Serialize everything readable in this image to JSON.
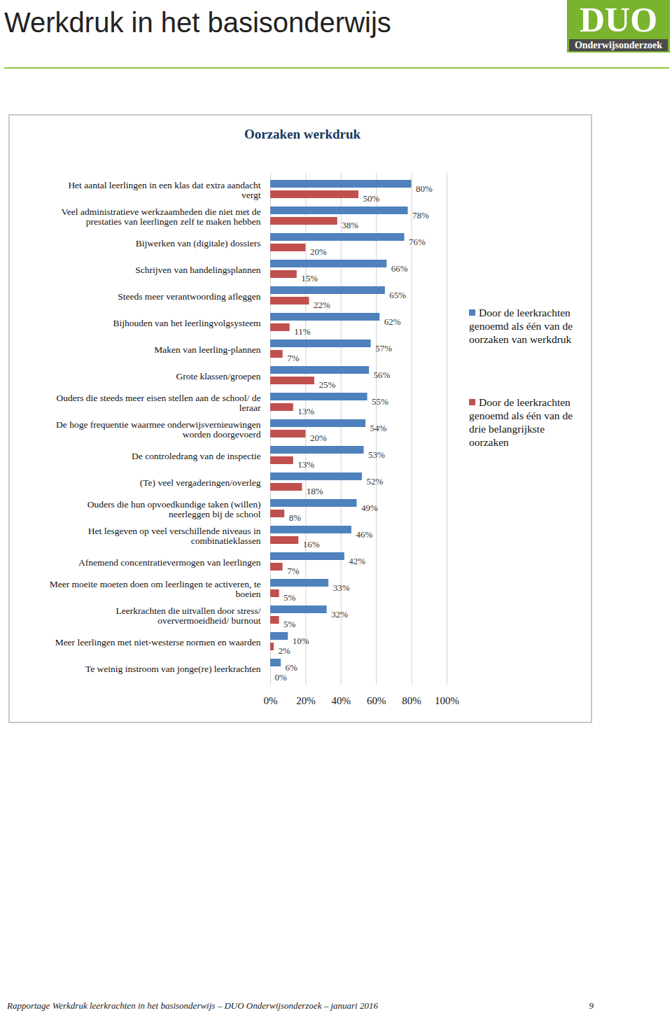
{
  "header": {
    "title": "Werkdruk in het basisonderwijs",
    "logo_big": "DUO",
    "logo_small": "Onderwijsonderzoek"
  },
  "footer": {
    "text": "Rapportage Werkdruk leerkrachten in het basisonderwijs – DUO Onderwijsonderzoek – januari 2016",
    "page": "9"
  },
  "chart_data": {
    "type": "bar",
    "title": "Oorzaken werkdruk",
    "orientation": "horizontal",
    "categories": [
      "Het aantal leerlingen in een klas dat extra aandacht vergt",
      "Veel administratieve werkzaamheden die niet met de prestaties van leerlingen zelf te maken hebben",
      "Bijwerken van (digitale) dossiers",
      "Schrijven van handelingsplannen",
      "Steeds meer verantwoording afleggen",
      "Bijhouden van het leerlingvolgsysteem",
      "Maken van leerling-plannen",
      "Grote klassen/groepen",
      "Ouders die steeds meer eisen stellen aan de school/ de leraar",
      "De hoge frequentie waarmee onderwijsvernieuwingen worden doorgevoerd",
      "De controledrang van de inspectie",
      "(Te) veel vergaderingen/overleg",
      "Ouders die hun opvoedkundige taken (willen) neerleggen bij de school",
      "Het lesgeven op veel verschillende niveaus in combinatieklassen",
      "Afnemend concentratievermogen van leerlingen",
      "Meer moeite moeten doen om leerlingen te activeren, te boeien",
      "Leerkrachten die uitvallen door stress/ oververmoeidheid/ burnout",
      "Meer leerlingen met niet-westerse normen en waarden",
      "Te weinig instroom van jonge(re) leerkrachten"
    ],
    "series": [
      {
        "name": "Door de leerkrachten genoemd als één van de oorzaken van werkdruk",
        "color": "#4f81bd",
        "values": [
          80,
          78,
          76,
          66,
          65,
          62,
          57,
          56,
          55,
          54,
          53,
          52,
          49,
          46,
          42,
          33,
          32,
          10,
          6
        ],
        "value_labels": [
          "80%",
          "78%",
          "76%",
          "66%",
          "65%",
          "62%",
          "57%",
          "56%",
          "55%",
          "54%",
          "53%",
          "52%",
          "49%",
          "46%",
          "42%",
          "33%",
          "32%",
          "10%",
          "6%"
        ]
      },
      {
        "name": "Door de leerkrachten genoemd als één van de drie belangrijkste oorzaken",
        "color": "#c0504d",
        "values": [
          50,
          38,
          20,
          15,
          22,
          11,
          7,
          25,
          13,
          20,
          13,
          18,
          8,
          16,
          7,
          5,
          5,
          2,
          0
        ],
        "value_labels": [
          "50%",
          "38%",
          "20%",
          "15%",
          "22%",
          "11%",
          "7%",
          "25%",
          "13%",
          "20%",
          "13%",
          "18%",
          "8%",
          "16%",
          "7%",
          "5%",
          "5%",
          "2%",
          "0%"
        ]
      }
    ],
    "xlim": [
      0,
      100
    ],
    "xticks": [
      {
        "value": 0,
        "label": "0%"
      },
      {
        "value": 20,
        "label": "20%"
      },
      {
        "value": 40,
        "label": "40%"
      },
      {
        "value": 60,
        "label": "60%"
      },
      {
        "value": 80,
        "label": "80%"
      },
      {
        "value": 100,
        "label": "100%"
      }
    ],
    "grid": true,
    "data_labels": true,
    "legend": "right"
  }
}
